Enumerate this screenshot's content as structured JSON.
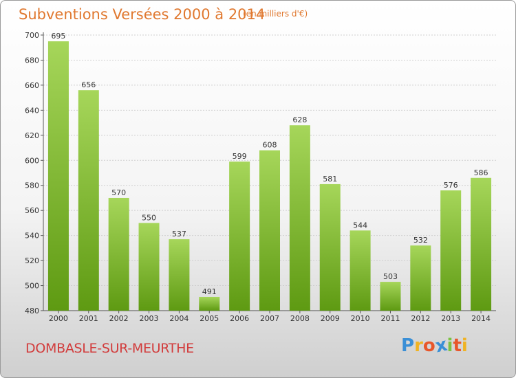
{
  "title": "Subventions Versées 2000 à 2014",
  "subtitle": "(en milliers d'€)",
  "city": "DOMBASLE-SUR-MEURTHE",
  "logo": {
    "letters": [
      "P",
      "r",
      "o",
      "x",
      "i",
      "t",
      "i"
    ],
    "colors": [
      "#3a8fd6",
      "#f0b323",
      "#e8562a",
      "#3a8fd6",
      "#7cc242",
      "#e8562a",
      "#f0b323"
    ]
  },
  "colors": {
    "bar_top": "#a6d65a",
    "bar_bottom": "#5e9a12",
    "title": "#e0782f",
    "city": "#d23c3c"
  },
  "chart_data": {
    "type": "bar",
    "title": "Subventions Versées 2000 à 2014",
    "subtitle": "(en milliers d'€)",
    "categories": [
      "2000",
      "2001",
      "2002",
      "2003",
      "2004",
      "2005",
      "2006",
      "2007",
      "2008",
      "2009",
      "2010",
      "2011",
      "2012",
      "2013",
      "2014"
    ],
    "values": [
      695,
      656,
      570,
      550,
      537,
      491,
      599,
      608,
      628,
      581,
      544,
      503,
      532,
      576,
      586
    ],
    "ylim": [
      480,
      700
    ],
    "yticks": [
      480,
      500,
      520,
      540,
      560,
      580,
      600,
      620,
      640,
      660,
      680,
      700
    ],
    "grid": true,
    "legend": "none"
  }
}
